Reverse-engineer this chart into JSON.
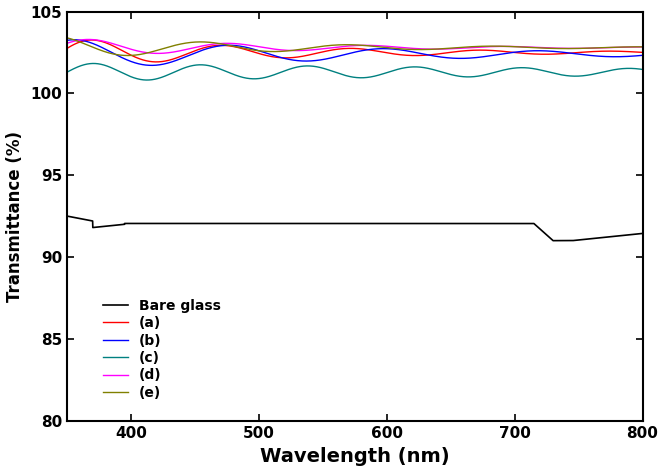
{
  "title": "",
  "xlabel": "Wavelength (nm)",
  "ylabel": "Transmittance (%)",
  "xlim": [
    350,
    800
  ],
  "ylim": [
    80,
    105
  ],
  "yticks": [
    80,
    85,
    90,
    95,
    100,
    105
  ],
  "xticks": [
    400,
    500,
    600,
    700,
    800
  ],
  "background_color": "#ffffff",
  "series": [
    {
      "label": "Bare glass",
      "color": "#000000",
      "linewidth": 1.2,
      "base": 92.1,
      "amplitude": 0.0,
      "freq": 0.0,
      "phase": 0.0,
      "decay": 0.0,
      "segments": [
        {
          "x0": 350,
          "x1": 370,
          "y": 92.5,
          "slope": -0.02
        },
        {
          "x0": 370,
          "x1": 390,
          "y": 91.8,
          "slope": 0.005
        },
        {
          "x0": 390,
          "x1": 720,
          "y": 92.0,
          "slope": 0.0
        },
        {
          "x0": 720,
          "x1": 740,
          "y": 92.0,
          "slope": -0.05
        },
        {
          "x0": 740,
          "x1": 760,
          "y": 91.0,
          "slope": 0.025
        },
        {
          "x0": 760,
          "x1": 800,
          "y": 91.5,
          "slope": -0.005
        }
      ]
    },
    {
      "label": "(a)",
      "color": "#ff0000",
      "linewidth": 1.0,
      "base": 102.5,
      "amplitude": 0.85,
      "freq": 0.062,
      "phase": 0.3,
      "decay": 0.0055,
      "segments": []
    },
    {
      "label": "(b)",
      "color": "#0000ff",
      "linewidth": 1.0,
      "base": 102.4,
      "amplitude": 0.9,
      "freq": 0.052,
      "phase": 1.2,
      "decay": 0.004,
      "segments": []
    },
    {
      "label": "(c)",
      "color": "#008080",
      "linewidth": 1.0,
      "base": 101.3,
      "amplitude": 0.55,
      "freq": 0.075,
      "phase": 0.0,
      "decay": 0.002,
      "segments": []
    },
    {
      "label": "(d)",
      "color": "#ff00ff",
      "linewidth": 1.0,
      "base": 102.8,
      "amplitude": 0.55,
      "freq": 0.058,
      "phase": 0.5,
      "decay": 0.006,
      "segments": []
    },
    {
      "label": "(e)",
      "color": "#808000",
      "linewidth": 1.0,
      "base": 102.8,
      "amplitude": 0.65,
      "freq": 0.055,
      "phase": 2.0,
      "decay": 0.006,
      "segments": []
    }
  ]
}
